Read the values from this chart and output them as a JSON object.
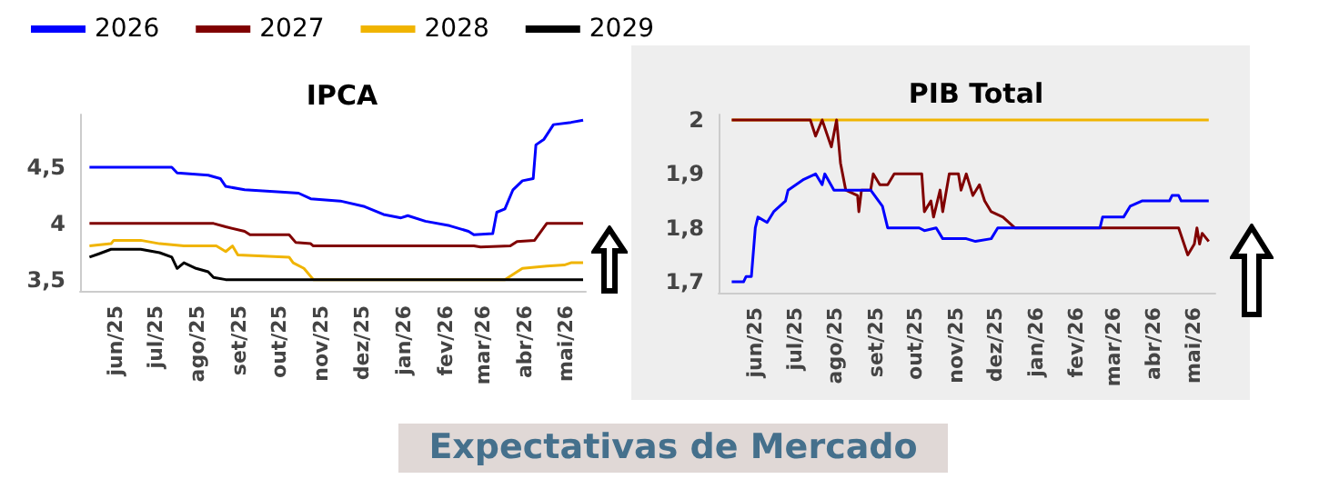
{
  "chart_data": [
    {
      "type": "line",
      "title": "IPCA",
      "legend": "top left",
      "grid": false,
      "xlim": [
        "2025-05-06",
        "2026-05-16"
      ],
      "xticks": [
        {
          "value": "2025-06-01",
          "label": "jun/25"
        },
        {
          "value": "2025-07-01",
          "label": "jul/25"
        },
        {
          "value": "2025-08-01",
          "label": "ago/25"
        },
        {
          "value": "2025-09-01",
          "label": "set/25"
        },
        {
          "value": "2025-10-01",
          "label": "out/25"
        },
        {
          "value": "2025-11-01",
          "label": "nov/25"
        },
        {
          "value": "2025-12-01",
          "label": "dez/25"
        },
        {
          "value": "2026-01-01",
          "label": "jan/26"
        },
        {
          "value": "2026-02-01",
          "label": "fev/26"
        },
        {
          "value": "2026-03-01",
          "label": "mar/26"
        },
        {
          "value": "2026-04-01",
          "label": "abr/26"
        },
        {
          "value": "2026-05-01",
          "label": "mai/26"
        }
      ],
      "ylim": [
        3.4,
        4.97
      ],
      "yticks": [
        {
          "value": 3.5,
          "label": "3,5"
        },
        4,
        {
          "value": 4.5,
          "label": "4,5"
        }
      ],
      "series": [
        {
          "name": "2026",
          "color": "#0000ff",
          "x": [
            "2025-05-13",
            "2025-07-13",
            "2025-07-17",
            "2025-08-09",
            "2025-08-18",
            "2025-08-22",
            "2025-09-05",
            "2025-10-02",
            "2025-10-15",
            "2025-10-24",
            "2025-11-15",
            "2025-12-03",
            "2025-12-17",
            "2025-12-30",
            "2026-01-04",
            "2026-01-17",
            "2026-02-04",
            "2026-02-18",
            "2026-02-22",
            "2026-03-08",
            "2026-03-11",
            "2026-03-17",
            "2026-03-23",
            "2026-03-30",
            "2026-04-07",
            "2026-04-09",
            "2026-04-15",
            "2026-04-22",
            "2026-05-05",
            "2026-05-14"
          ],
          "values": [
            4.5,
            4.5,
            4.45,
            4.43,
            4.4,
            4.33,
            4.3,
            4.28,
            4.27,
            4.22,
            4.2,
            4.15,
            4.08,
            4.05,
            4.07,
            4.02,
            3.98,
            3.93,
            3.9,
            3.91,
            4.1,
            4.13,
            4.3,
            4.38,
            4.4,
            4.7,
            4.75,
            4.88,
            4.9,
            4.92
          ]
        },
        {
          "name": "2027",
          "color": "#800000",
          "x": [
            "2025-05-13",
            "2025-08-13",
            "2025-08-22",
            "2025-09-05",
            "2025-09-09",
            "2025-10-08",
            "2025-10-13",
            "2025-10-24",
            "2025-10-26",
            "2026-02-22",
            "2026-02-27",
            "2026-03-21",
            "2026-03-26",
            "2026-04-08",
            "2026-04-17",
            "2026-05-14"
          ],
          "values": [
            4.0,
            4.0,
            3.97,
            3.93,
            3.9,
            3.9,
            3.83,
            3.82,
            3.8,
            3.8,
            3.79,
            3.8,
            3.84,
            3.85,
            4.0,
            4.0
          ]
        },
        {
          "name": "2028",
          "color": "#f0b400",
          "x": [
            "2025-05-13",
            "2025-05-29",
            "2025-05-31",
            "2025-06-20",
            "2025-07-04",
            "2025-07-22",
            "2025-08-15",
            "2025-08-22",
            "2025-08-27",
            "2025-08-31",
            "2025-10-08",
            "2025-10-11",
            "2025-10-19",
            "2025-10-26",
            "2026-03-17",
            "2026-03-26",
            "2026-03-30",
            "2026-04-17",
            "2026-04-30",
            "2026-05-05",
            "2026-05-14"
          ],
          "values": [
            3.8,
            3.82,
            3.85,
            3.85,
            3.82,
            3.8,
            3.8,
            3.75,
            3.8,
            3.72,
            3.7,
            3.65,
            3.6,
            3.5,
            3.5,
            3.57,
            3.6,
            3.62,
            3.63,
            3.65,
            3.65
          ]
        },
        {
          "name": "2029",
          "color": "#000000",
          "x": [
            "2025-05-13",
            "2025-05-20",
            "2025-05-29",
            "2025-06-20",
            "2025-07-04",
            "2025-07-13",
            "2025-07-17",
            "2025-07-22",
            "2025-07-31",
            "2025-08-09",
            "2025-08-13",
            "2025-08-22",
            "2026-05-14"
          ],
          "values": [
            3.7,
            3.73,
            3.77,
            3.77,
            3.74,
            3.7,
            3.6,
            3.65,
            3.6,
            3.57,
            3.52,
            3.5,
            3.5
          ]
        }
      ]
    },
    {
      "type": "line",
      "title": "PIB Total",
      "grid": false,
      "xlim": [
        "2025-05-04",
        "2026-05-18"
      ],
      "xticks": [
        {
          "value": "2025-06-01",
          "label": "jun/25"
        },
        {
          "value": "2025-07-01",
          "label": "jul/25"
        },
        {
          "value": "2025-08-01",
          "label": "ago/25"
        },
        {
          "value": "2025-09-01",
          "label": "set/25"
        },
        {
          "value": "2025-10-01",
          "label": "out/25"
        },
        {
          "value": "2025-11-01",
          "label": "nov/25"
        },
        {
          "value": "2025-12-01",
          "label": "dez/25"
        },
        {
          "value": "2026-01-01",
          "label": "jan/26"
        },
        {
          "value": "2026-02-01",
          "label": "fev/26"
        },
        {
          "value": "2026-03-01",
          "label": "mar/26"
        },
        {
          "value": "2026-04-01",
          "label": "abr/26"
        },
        {
          "value": "2026-05-01",
          "label": "mai/26"
        }
      ],
      "ylim": [
        1.68,
        2.01
      ],
      "yticks": [
        {
          "value": 1.7,
          "label": "1,7"
        },
        {
          "value": 1.8,
          "label": "1,8"
        },
        {
          "value": 1.9,
          "label": "1,9"
        },
        2
      ],
      "series": [
        {
          "color": "#f0b400",
          "x": [
            "2025-05-14",
            "2026-05-13"
          ],
          "values": [
            2.0,
            2.0
          ]
        },
        {
          "color": "#800000",
          "x": [
            "2025-05-14",
            "2025-07-13",
            "2025-07-17",
            "2025-07-22",
            "2025-07-29",
            "2025-08-02",
            "2025-08-05",
            "2025-08-09",
            "2025-08-18",
            "2025-08-19",
            "2025-08-21",
            "2025-08-28",
            "2025-08-30",
            "2025-09-04",
            "2025-09-10",
            "2025-09-15",
            "2025-10-06",
            "2025-10-08",
            "2025-10-13",
            "2025-10-15",
            "2025-10-20",
            "2025-10-22",
            "2025-10-27",
            "2025-11-03",
            "2025-11-05",
            "2025-11-09",
            "2025-11-14",
            "2025-11-19",
            "2025-11-23",
            "2025-11-28",
            "2025-12-07",
            "2025-12-16",
            "2026-04-20",
            "2026-04-27",
            "2026-05-02",
            "2026-05-04",
            "2026-05-06",
            "2026-05-08",
            "2026-05-13"
          ],
          "values": [
            2.0,
            2.0,
            1.97,
            2.0,
            1.95,
            2.0,
            1.92,
            1.87,
            1.86,
            1.83,
            1.87,
            1.87,
            1.9,
            1.88,
            1.88,
            1.9,
            1.9,
            1.83,
            1.85,
            1.82,
            1.87,
            1.83,
            1.9,
            1.9,
            1.87,
            1.9,
            1.86,
            1.88,
            1.85,
            1.83,
            1.82,
            1.8,
            1.8,
            1.75,
            1.77,
            1.8,
            1.77,
            1.79,
            1.775
          ]
        },
        {
          "color": "#0000ff",
          "x": [
            "2025-05-14",
            "2025-05-23",
            "2025-05-25",
            "2025-05-29",
            "2025-06-01",
            "2025-06-03",
            "2025-06-10",
            "2025-06-15",
            "2025-06-24",
            "2025-06-26",
            "2025-07-08",
            "2025-07-17",
            "2025-07-22",
            "2025-07-24",
            "2025-07-31",
            "2025-08-28",
            "2025-09-06",
            "2025-09-10",
            "2025-10-04",
            "2025-10-08",
            "2025-10-17",
            "2025-10-22",
            "2025-11-09",
            "2025-11-16",
            "2025-11-28",
            "2025-12-03",
            "2026-02-19",
            "2026-02-21",
            "2026-03-09",
            "2026-03-14",
            "2026-03-23",
            "2026-04-13",
            "2026-04-15",
            "2026-04-20",
            "2026-04-22",
            "2026-05-13"
          ],
          "values": [
            1.7,
            1.7,
            1.71,
            1.71,
            1.8,
            1.82,
            1.81,
            1.83,
            1.85,
            1.87,
            1.89,
            1.9,
            1.88,
            1.9,
            1.87,
            1.87,
            1.84,
            1.8,
            1.8,
            1.795,
            1.8,
            1.78,
            1.78,
            1.775,
            1.78,
            1.8,
            1.8,
            1.82,
            1.82,
            1.84,
            1.85,
            1.85,
            1.86,
            1.86,
            1.85,
            1.85
          ]
        }
      ]
    },
    {
      "type": "other",
      "title": "Expectativas de Mercado"
    }
  ]
}
